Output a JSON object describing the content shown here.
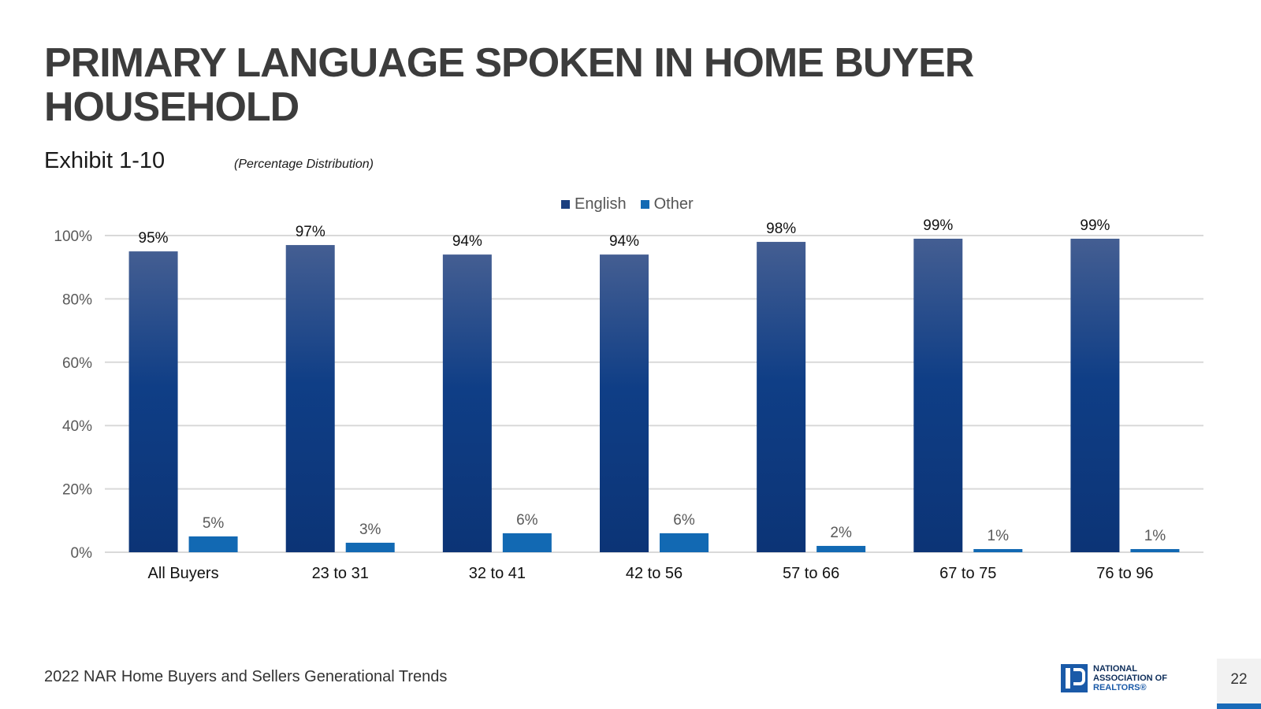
{
  "header": {
    "title": "PRIMARY LANGUAGE SPOKEN IN HOME BUYER HOUSEHOLD",
    "exhibit": "Exhibit 1-10",
    "subtitle": "(Percentage Distribution)"
  },
  "chart_data": {
    "type": "bar",
    "categories": [
      "All Buyers",
      "23 to 31",
      "32 to 41",
      "42 to 56",
      "57 to 66",
      "67 to 75",
      "76 to 96"
    ],
    "series": [
      {
        "name": "English",
        "values": [
          95,
          97,
          94,
          94,
          98,
          99,
          99
        ],
        "color": "#1a3f7f"
      },
      {
        "name": "Other",
        "values": [
          5,
          3,
          6,
          6,
          2,
          1,
          1
        ],
        "color": "#1269b3"
      }
    ],
    "value_labels": {
      "English": [
        "95%",
        "97%",
        "94%",
        "94%",
        "98%",
        "99%",
        "99%"
      ],
      "Other": [
        "5%",
        "3%",
        "6%",
        "6%",
        "2%",
        "1%",
        "1%"
      ]
    },
    "ylim": [
      0,
      100
    ],
    "yticks": [
      "0%",
      "20%",
      "40%",
      "60%",
      "80%",
      "100%"
    ],
    "ytick_values": [
      0,
      20,
      40,
      60,
      80,
      100
    ],
    "grid": true,
    "legend_position": "top-center"
  },
  "footer": {
    "source": "2022 NAR Home Buyers and Sellers Generational Trends",
    "logo_lines": [
      "NATIONAL",
      "ASSOCIATION OF",
      "REALTORS®"
    ],
    "page_number": "22"
  }
}
